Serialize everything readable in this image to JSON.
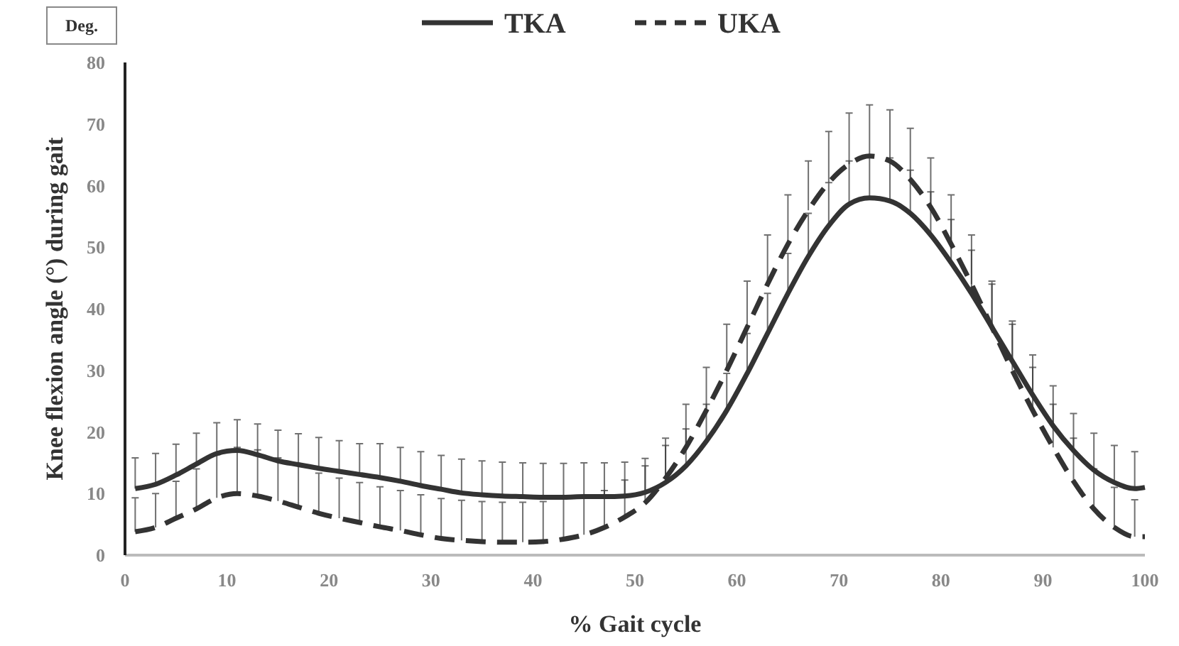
{
  "chart_data": {
    "type": "line",
    "xlabel": "% Gait cycle",
    "ylabel": "Knee flexion angle (°) during gait",
    "annotations": [
      "Deg."
    ],
    "legend": "top",
    "xlim": [
      0,
      100
    ],
    "xticks": [
      0,
      10,
      20,
      30,
      40,
      50,
      60,
      70,
      80,
      90,
      100
    ],
    "ylim": [
      0,
      80
    ],
    "yticks": [
      0,
      10,
      20,
      30,
      40,
      50,
      60,
      70,
      80
    ],
    "x": [
      1,
      3,
      5,
      7,
      9,
      11,
      13,
      15,
      17,
      19,
      21,
      23,
      25,
      27,
      29,
      31,
      33,
      35,
      37,
      39,
      41,
      43,
      45,
      47,
      49,
      51,
      53,
      55,
      57,
      59,
      61,
      63,
      65,
      67,
      69,
      71,
      73,
      75,
      77,
      79,
      81,
      83,
      85,
      87,
      89,
      91,
      93,
      95,
      97,
      99,
      100
    ],
    "series": [
      {
        "name": "TKA",
        "color": "#333333",
        "line_style": "solid",
        "values": [
          10.8,
          11.5,
          13,
          14.8,
          16.5,
          17,
          16.3,
          15.3,
          14.7,
          14.1,
          13.6,
          13.1,
          12.6,
          12,
          11.3,
          10.7,
          10.1,
          9.8,
          9.6,
          9.5,
          9.4,
          9.4,
          9.5,
          9.5,
          9.6,
          10.2,
          11.8,
          14.5,
          18.5,
          23.5,
          29.5,
          36,
          42.5,
          48.5,
          53.5,
          57,
          58,
          57.5,
          55.5,
          52,
          47.5,
          42.5,
          37,
          31.5,
          26,
          21,
          17,
          13.8,
          11.8,
          10.8,
          11
        ],
        "errors": [
          [
            10.8,
            15.8
          ],
          [
            11.5,
            16.5
          ],
          [
            13,
            18
          ],
          [
            14.8,
            19.8
          ],
          [
            16.5,
            21.5
          ],
          [
            17,
            22
          ],
          [
            16.3,
            21.3
          ],
          [
            15.3,
            20.3
          ],
          [
            14.7,
            19.7
          ],
          [
            14.1,
            19.1
          ],
          [
            13.6,
            18.6
          ],
          [
            13.1,
            18.1
          ],
          [
            12.6,
            18.1
          ],
          [
            12,
            17.5
          ],
          [
            11.3,
            16.8
          ],
          [
            10.7,
            16.2
          ],
          [
            10.1,
            15.6
          ],
          [
            9.8,
            15.3
          ],
          [
            9.6,
            15.1
          ],
          [
            9.5,
            15
          ],
          [
            9.4,
            14.9
          ],
          [
            9.4,
            14.9
          ],
          [
            9.5,
            15
          ],
          [
            9.5,
            15
          ],
          [
            9.6,
            15.1
          ],
          [
            10.2,
            15.7
          ],
          [
            11.8,
            17.8
          ],
          [
            14.5,
            20.5
          ],
          [
            18.5,
            24.5
          ],
          [
            23.5,
            29.5
          ],
          [
            29.5,
            36
          ],
          [
            36,
            42.5
          ],
          [
            42.5,
            49
          ],
          [
            48.5,
            55.5
          ],
          [
            53.5,
            60.5
          ],
          [
            57,
            64
          ],
          [
            58,
            65
          ],
          [
            57.5,
            64.5
          ],
          [
            55.5,
            62.5
          ],
          [
            52,
            59
          ],
          [
            47.5,
            54.5
          ],
          [
            42.5,
            49.5
          ],
          [
            37,
            44
          ],
          [
            31.5,
            38
          ],
          [
            26,
            32.5
          ],
          [
            21,
            27.5
          ],
          [
            17,
            23
          ],
          [
            13.8,
            19.8
          ],
          [
            11.8,
            17.8
          ],
          [
            10.8,
            16.8
          ],
          null
        ]
      },
      {
        "name": "UKA",
        "color": "#333333",
        "line_style": "dashed",
        "values": [
          3.8,
          4.5,
          6,
          7.5,
          9.3,
          10,
          9.6,
          8.8,
          7.8,
          6.8,
          6,
          5.3,
          4.6,
          4,
          3.3,
          2.7,
          2.4,
          2.2,
          2.1,
          2.1,
          2.2,
          2.6,
          3.3,
          4.5,
          6.2,
          8.5,
          12.5,
          17.5,
          23.5,
          30,
          37,
          44,
          50.5,
          56,
          60.5,
          63.5,
          64.8,
          64,
          61,
          56.5,
          50.5,
          44,
          37,
          30,
          23.5,
          17.5,
          12,
          7.5,
          4.5,
          3,
          3
        ],
        "errors": [
          [
            3.8,
            9.3
          ],
          [
            4.5,
            10
          ],
          [
            6,
            12
          ],
          [
            7.5,
            14
          ],
          [
            9.3,
            16.3
          ],
          [
            10,
            17.5
          ],
          [
            9.6,
            17.1
          ],
          [
            8.8,
            15.8
          ],
          [
            7.8,
            14.8
          ],
          [
            6.8,
            13.3
          ],
          [
            6,
            12.5
          ],
          [
            5.3,
            11.8
          ],
          [
            4.6,
            11.1
          ],
          [
            4,
            10.5
          ],
          [
            3.3,
            9.8
          ],
          [
            2.7,
            9.2
          ],
          [
            2.4,
            8.9
          ],
          [
            2.2,
            8.7
          ],
          [
            2.1,
            8.6
          ],
          [
            2.1,
            8.6
          ],
          [
            2.2,
            8.7
          ],
          [
            2.6,
            9.1
          ],
          [
            3.3,
            9.3
          ],
          [
            4.5,
            10.5
          ],
          [
            6.2,
            12.2
          ],
          [
            8.5,
            14.5
          ],
          [
            12.5,
            19
          ],
          [
            17.5,
            24.5
          ],
          [
            23.5,
            30.5
          ],
          [
            30,
            37.5
          ],
          [
            37,
            44.5
          ],
          [
            44,
            52
          ],
          [
            50.5,
            58.5
          ],
          [
            56,
            64
          ],
          [
            60.5,
            68.8
          ],
          [
            63.5,
            71.8
          ],
          [
            64.8,
            73.1
          ],
          [
            64,
            72.3
          ],
          [
            61,
            69.3
          ],
          [
            56.5,
            64.5
          ],
          [
            50.5,
            58.5
          ],
          [
            44,
            52
          ],
          [
            37,
            44.5
          ],
          [
            30,
            37.5
          ],
          [
            23.5,
            30.5
          ],
          [
            17.5,
            24.5
          ],
          [
            12,
            19
          ],
          [
            7.5,
            14
          ],
          [
            4.5,
            11
          ],
          [
            3,
            9
          ],
          null
        ]
      }
    ]
  }
}
